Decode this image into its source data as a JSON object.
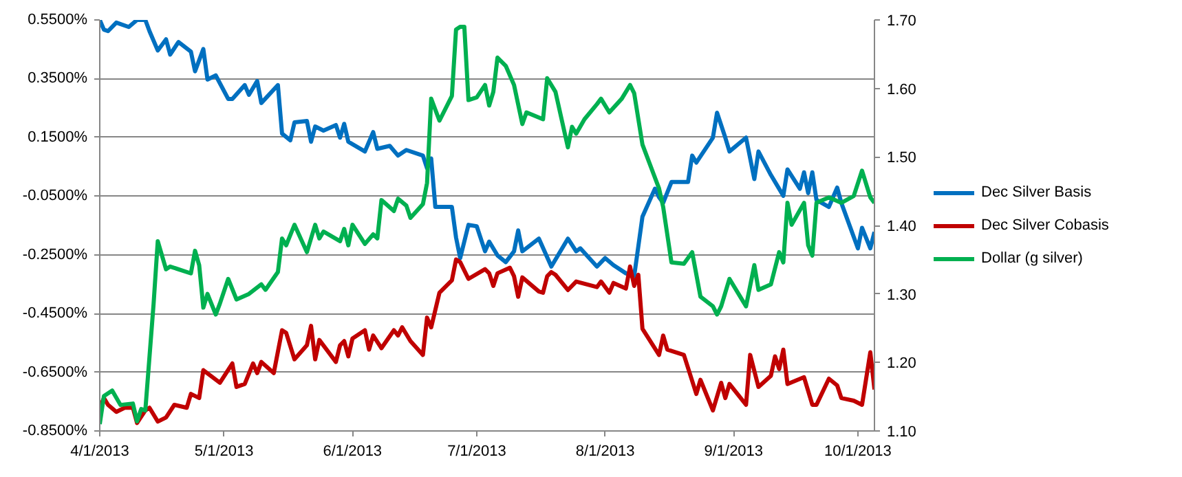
{
  "chart_data": {
    "type": "line",
    "grid": "y",
    "legend": "right",
    "line_style": "solid",
    "marker": "none",
    "xlim": [
      "2013-04-01",
      "2013-10-05"
    ],
    "xticks": [
      {
        "value": "2013-04-01",
        "label": "4/1/2013"
      },
      {
        "value": "2013-05-01",
        "label": "5/1/2013"
      },
      {
        "value": "2013-06-01",
        "label": "6/1/2013"
      },
      {
        "value": "2013-07-01",
        "label": "7/1/2013"
      },
      {
        "value": "2013-08-01",
        "label": "8/1/2013"
      },
      {
        "value": "2013-09-01",
        "label": "9/1/2013"
      },
      {
        "value": "2013-10-01",
        "label": "10/1/2013"
      }
    ],
    "ylim": [
      -0.85,
      0.55
    ],
    "yticks": [
      {
        "value": 0.55,
        "label": "0.5500%"
      },
      {
        "value": 0.35,
        "label": "0.3500%"
      },
      {
        "value": 0.15,
        "label": "0.1500%"
      },
      {
        "value": -0.05,
        "label": "-0.0500%"
      },
      {
        "value": -0.25,
        "label": "-0.2500%"
      },
      {
        "value": -0.45,
        "label": "-0.4500%"
      },
      {
        "value": -0.65,
        "label": "-0.6500%"
      },
      {
        "value": -0.85,
        "label": "-0.8500%"
      }
    ],
    "y2lim": [
      1.1,
      1.7
    ],
    "y2ticks": [
      {
        "value": 1.1,
        "label": "1.10"
      },
      {
        "value": 1.2,
        "label": "1.20"
      },
      {
        "value": 1.3,
        "label": "1.30"
      },
      {
        "value": 1.4,
        "label": "1.40"
      },
      {
        "value": 1.5,
        "label": "1.50"
      },
      {
        "value": 1.6,
        "label": "1.60"
      },
      {
        "value": 1.7,
        "label": "1.70"
      }
    ],
    "series": [
      {
        "name": "Dec Silver Basis",
        "color": "#0070c0",
        "x": [
          "2013-04-01",
          "2013-04-02",
          "2013-04-03",
          "2013-04-05",
          "2013-04-08",
          "2013-04-10",
          "2013-04-12",
          "2013-04-13",
          "2013-04-15",
          "2013-04-17",
          "2013-04-18",
          "2013-04-20",
          "2013-04-23",
          "2013-04-24",
          "2013-04-26",
          "2013-04-27",
          "2013-04-29",
          "2013-05-02",
          "2013-05-03",
          "2013-05-06",
          "2013-05-07",
          "2013-05-09",
          "2013-05-10",
          "2013-05-14",
          "2013-05-15",
          "2013-05-17",
          "2013-05-18",
          "2013-05-21",
          "2013-05-22",
          "2013-05-23",
          "2013-05-25",
          "2013-05-28",
          "2013-05-29",
          "2013-05-30",
          "2013-05-31",
          "2013-06-04",
          "2013-06-06",
          "2013-06-07",
          "2013-06-10",
          "2013-06-12",
          "2013-06-14",
          "2013-06-18",
          "2013-06-19",
          "2013-06-20",
          "2013-06-21",
          "2013-06-25",
          "2013-06-26",
          "2013-06-27",
          "2013-06-29",
          "2013-07-01",
          "2013-07-03",
          "2013-07-04",
          "2013-07-06",
          "2013-07-08",
          "2013-07-10",
          "2013-07-11",
          "2013-07-12",
          "2013-07-16",
          "2013-07-19",
          "2013-07-23",
          "2013-07-25",
          "2013-07-26",
          "2013-07-30",
          "2013-08-01",
          "2013-08-03",
          "2013-08-06",
          "2013-08-08",
          "2013-08-10",
          "2013-08-13",
          "2013-08-14",
          "2013-08-15",
          "2013-08-17",
          "2013-08-21",
          "2013-08-22",
          "2013-08-23",
          "2013-08-27",
          "2013-08-28",
          "2013-08-30",
          "2013-08-31",
          "2013-09-04",
          "2013-09-06",
          "2013-09-07",
          "2013-09-10",
          "2013-09-13",
          "2013-09-14",
          "2013-09-17",
          "2013-09-18",
          "2013-09-19",
          "2013-09-20",
          "2013-09-21",
          "2013-09-24",
          "2013-09-26",
          "2013-09-27",
          "2013-10-01",
          "2013-10-02",
          "2013-10-04",
          "2013-10-05"
        ],
        "values": [
          0.55,
          0.517,
          0.512,
          0.541,
          0.526,
          0.55,
          0.55,
          0.512,
          0.446,
          0.484,
          0.432,
          0.475,
          0.442,
          0.375,
          0.451,
          0.347,
          0.361,
          0.281,
          0.281,
          0.328,
          0.295,
          0.342,
          0.267,
          0.328,
          0.163,
          0.14,
          0.201,
          0.206,
          0.135,
          0.187,
          0.173,
          0.192,
          0.149,
          0.196,
          0.135,
          0.102,
          0.168,
          0.111,
          0.121,
          0.088,
          0.107,
          0.088,
          0.045,
          0.078,
          -0.087,
          -0.087,
          -0.191,
          -0.261,
          -0.148,
          -0.153,
          -0.238,
          -0.205,
          -0.252,
          -0.275,
          -0.238,
          -0.167,
          -0.238,
          -0.195,
          -0.29,
          -0.195,
          -0.238,
          -0.228,
          -0.29,
          -0.261,
          -0.285,
          -0.313,
          -0.323,
          -0.12,
          -0.025,
          -0.054,
          -0.073,
          -0.002,
          -0.002,
          0.088,
          0.064,
          0.149,
          0.234,
          0.149,
          0.102,
          0.149,
          0.008,
          0.102,
          0.022,
          -0.049,
          0.041,
          -0.025,
          0.031,
          -0.04,
          0.031,
          -0.063,
          -0.087,
          -0.021,
          -0.073,
          -0.228,
          -0.158,
          -0.228,
          -0.172
        ]
      },
      {
        "name": "Dec Silver Cobasis",
        "color": "#c00000",
        "x": [
          "2013-04-01",
          "2013-04-02",
          "2013-04-03",
          "2013-04-05",
          "2013-04-07",
          "2013-04-09",
          "2013-04-10",
          "2013-04-12",
          "2013-04-13",
          "2013-04-15",
          "2013-04-17",
          "2013-04-19",
          "2013-04-22",
          "2013-04-23",
          "2013-04-25",
          "2013-04-26",
          "2013-04-30",
          "2013-05-03",
          "2013-05-04",
          "2013-05-06",
          "2013-05-08",
          "2013-05-09",
          "2013-05-10",
          "2013-05-13",
          "2013-05-15",
          "2013-05-16",
          "2013-05-18",
          "2013-05-21",
          "2013-05-22",
          "2013-05-23",
          "2013-05-24",
          "2013-05-28",
          "2013-05-29",
          "2013-05-30",
          "2013-05-31",
          "2013-06-01",
          "2013-06-04",
          "2013-06-05",
          "2013-06-06",
          "2013-06-08",
          "2013-06-11",
          "2013-06-12",
          "2013-06-13",
          "2013-06-15",
          "2013-06-18",
          "2013-06-19",
          "2013-06-20",
          "2013-06-22",
          "2013-06-25",
          "2013-06-26",
          "2013-06-27",
          "2013-06-29",
          "2013-07-03",
          "2013-07-04",
          "2013-07-05",
          "2013-07-06",
          "2013-07-09",
          "2013-07-10",
          "2013-07-11",
          "2013-07-12",
          "2013-07-16",
          "2013-07-17",
          "2013-07-18",
          "2013-07-19",
          "2013-07-20",
          "2013-07-23",
          "2013-07-25",
          "2013-07-30",
          "2013-07-31",
          "2013-08-02",
          "2013-08-03",
          "2013-08-06",
          "2013-08-07",
          "2013-08-08",
          "2013-08-09",
          "2013-08-10",
          "2013-08-14",
          "2013-08-15",
          "2013-08-16",
          "2013-08-20",
          "2013-08-23",
          "2013-08-24",
          "2013-08-27",
          "2013-08-29",
          "2013-08-30",
          "2013-08-31",
          "2013-09-04",
          "2013-09-05",
          "2013-09-07",
          "2013-09-10",
          "2013-09-11",
          "2013-09-12",
          "2013-09-13",
          "2013-09-14",
          "2013-09-18",
          "2013-09-20",
          "2013-09-21",
          "2013-09-24",
          "2013-09-26",
          "2013-09-27",
          "2013-09-30",
          "2013-10-02",
          "2013-10-04",
          "2013-10-05"
        ],
        "values": [
          -0.771,
          -0.738,
          -0.761,
          -0.785,
          -0.771,
          -0.771,
          -0.823,
          -0.78,
          -0.771,
          -0.818,
          -0.804,
          -0.761,
          -0.771,
          -0.724,
          -0.738,
          -0.643,
          -0.686,
          -0.62,
          -0.7,
          -0.69,
          -0.62,
          -0.653,
          -0.615,
          -0.653,
          -0.507,
          -0.516,
          -0.606,
          -0.558,
          -0.492,
          -0.606,
          -0.54,
          -0.615,
          -0.558,
          -0.544,
          -0.596,
          -0.535,
          -0.507,
          -0.573,
          -0.525,
          -0.568,
          -0.507,
          -0.525,
          -0.497,
          -0.544,
          -0.591,
          -0.464,
          -0.497,
          -0.379,
          -0.337,
          -0.266,
          -0.275,
          -0.332,
          -0.299,
          -0.313,
          -0.356,
          -0.313,
          -0.294,
          -0.323,
          -0.393,
          -0.327,
          -0.375,
          -0.379,
          -0.323,
          -0.309,
          -0.318,
          -0.37,
          -0.341,
          -0.36,
          -0.341,
          -0.379,
          -0.346,
          -0.365,
          -0.29,
          -0.356,
          -0.318,
          -0.502,
          -0.591,
          -0.525,
          -0.573,
          -0.591,
          -0.724,
          -0.676,
          -0.78,
          -0.686,
          -0.738,
          -0.69,
          -0.761,
          -0.591,
          -0.7,
          -0.662,
          -0.596,
          -0.639,
          -0.573,
          -0.69,
          -0.667,
          -0.761,
          -0.761,
          -0.672,
          -0.695,
          -0.738,
          -0.747,
          -0.761,
          -0.582,
          -0.709
        ]
      },
      {
        "name": "Dollar (g silver)",
        "color": "#00b050",
        "axis": "y2",
        "x": [
          "2013-04-01",
          "2013-04-02",
          "2013-04-04",
          "2013-04-06",
          "2013-04-09",
          "2013-04-10",
          "2013-04-11",
          "2013-04-12",
          "2013-04-14",
          "2013-04-15",
          "2013-04-17",
          "2013-04-18",
          "2013-04-23",
          "2013-04-24",
          "2013-04-25",
          "2013-04-26",
          "2013-04-27",
          "2013-04-29",
          "2013-04-30",
          "2013-05-02",
          "2013-05-04",
          "2013-05-07",
          "2013-05-10",
          "2013-05-11",
          "2013-05-14",
          "2013-05-15",
          "2013-05-16",
          "2013-05-18",
          "2013-05-21",
          "2013-05-23",
          "2013-05-24",
          "2013-05-25",
          "2013-05-29",
          "2013-05-30",
          "2013-05-31",
          "2013-06-01",
          "2013-06-04",
          "2013-06-06",
          "2013-06-07",
          "2013-06-08",
          "2013-06-11",
          "2013-06-12",
          "2013-06-14",
          "2013-06-15",
          "2013-06-18",
          "2013-06-19",
          "2013-06-20",
          "2013-06-22",
          "2013-06-25",
          "2013-06-26",
          "2013-06-27",
          "2013-06-28",
          "2013-06-29",
          "2013-07-01",
          "2013-07-03",
          "2013-07-04",
          "2013-07-05",
          "2013-07-06",
          "2013-07-08",
          "2013-07-10",
          "2013-07-12",
          "2013-07-13",
          "2013-07-17",
          "2013-07-18",
          "2013-07-20",
          "2013-07-23",
          "2013-07-24",
          "2013-07-25",
          "2013-07-27",
          "2013-07-30",
          "2013-07-31",
          "2013-08-02",
          "2013-08-05",
          "2013-08-07",
          "2013-08-08",
          "2013-08-10",
          "2013-08-14",
          "2013-08-15",
          "2013-08-17",
          "2013-08-20",
          "2013-08-22",
          "2013-08-24",
          "2013-08-27",
          "2013-08-28",
          "2013-08-29",
          "2013-08-31",
          "2013-09-04",
          "2013-09-06",
          "2013-09-07",
          "2013-09-10",
          "2013-09-12",
          "2013-09-13",
          "2013-09-14",
          "2013-09-15",
          "2013-09-18",
          "2013-09-19",
          "2013-09-20",
          "2013-09-21",
          "2013-09-24",
          "2013-09-27",
          "2013-09-30",
          "2013-10-02",
          "2013-10-04",
          "2013-10-05"
        ],
        "values": [
          1.11,
          1.151,
          1.159,
          1.138,
          1.14,
          1.114,
          1.132,
          1.13,
          1.286,
          1.377,
          1.336,
          1.34,
          1.33,
          1.363,
          1.342,
          1.28,
          1.3,
          1.27,
          1.286,
          1.322,
          1.292,
          1.3,
          1.314,
          1.306,
          1.332,
          1.381,
          1.371,
          1.401,
          1.361,
          1.401,
          1.381,
          1.391,
          1.377,
          1.395,
          1.371,
          1.401,
          1.373,
          1.387,
          1.381,
          1.437,
          1.421,
          1.439,
          1.429,
          1.411,
          1.431,
          1.462,
          1.585,
          1.553,
          1.589,
          1.686,
          1.69,
          1.69,
          1.583,
          1.587,
          1.605,
          1.575,
          1.595,
          1.645,
          1.633,
          1.605,
          1.548,
          1.565,
          1.555,
          1.615,
          1.595,
          1.514,
          1.544,
          1.534,
          1.555,
          1.577,
          1.585,
          1.565,
          1.585,
          1.605,
          1.593,
          1.518,
          1.454,
          1.427,
          1.346,
          1.344,
          1.361,
          1.296,
          1.282,
          1.27,
          1.282,
          1.322,
          1.282,
          1.342,
          1.306,
          1.314,
          1.361,
          1.346,
          1.433,
          1.401,
          1.433,
          1.371,
          1.356,
          1.433,
          1.441,
          1.433,
          1.443,
          1.48,
          1.441,
          1.433
        ]
      }
    ]
  }
}
